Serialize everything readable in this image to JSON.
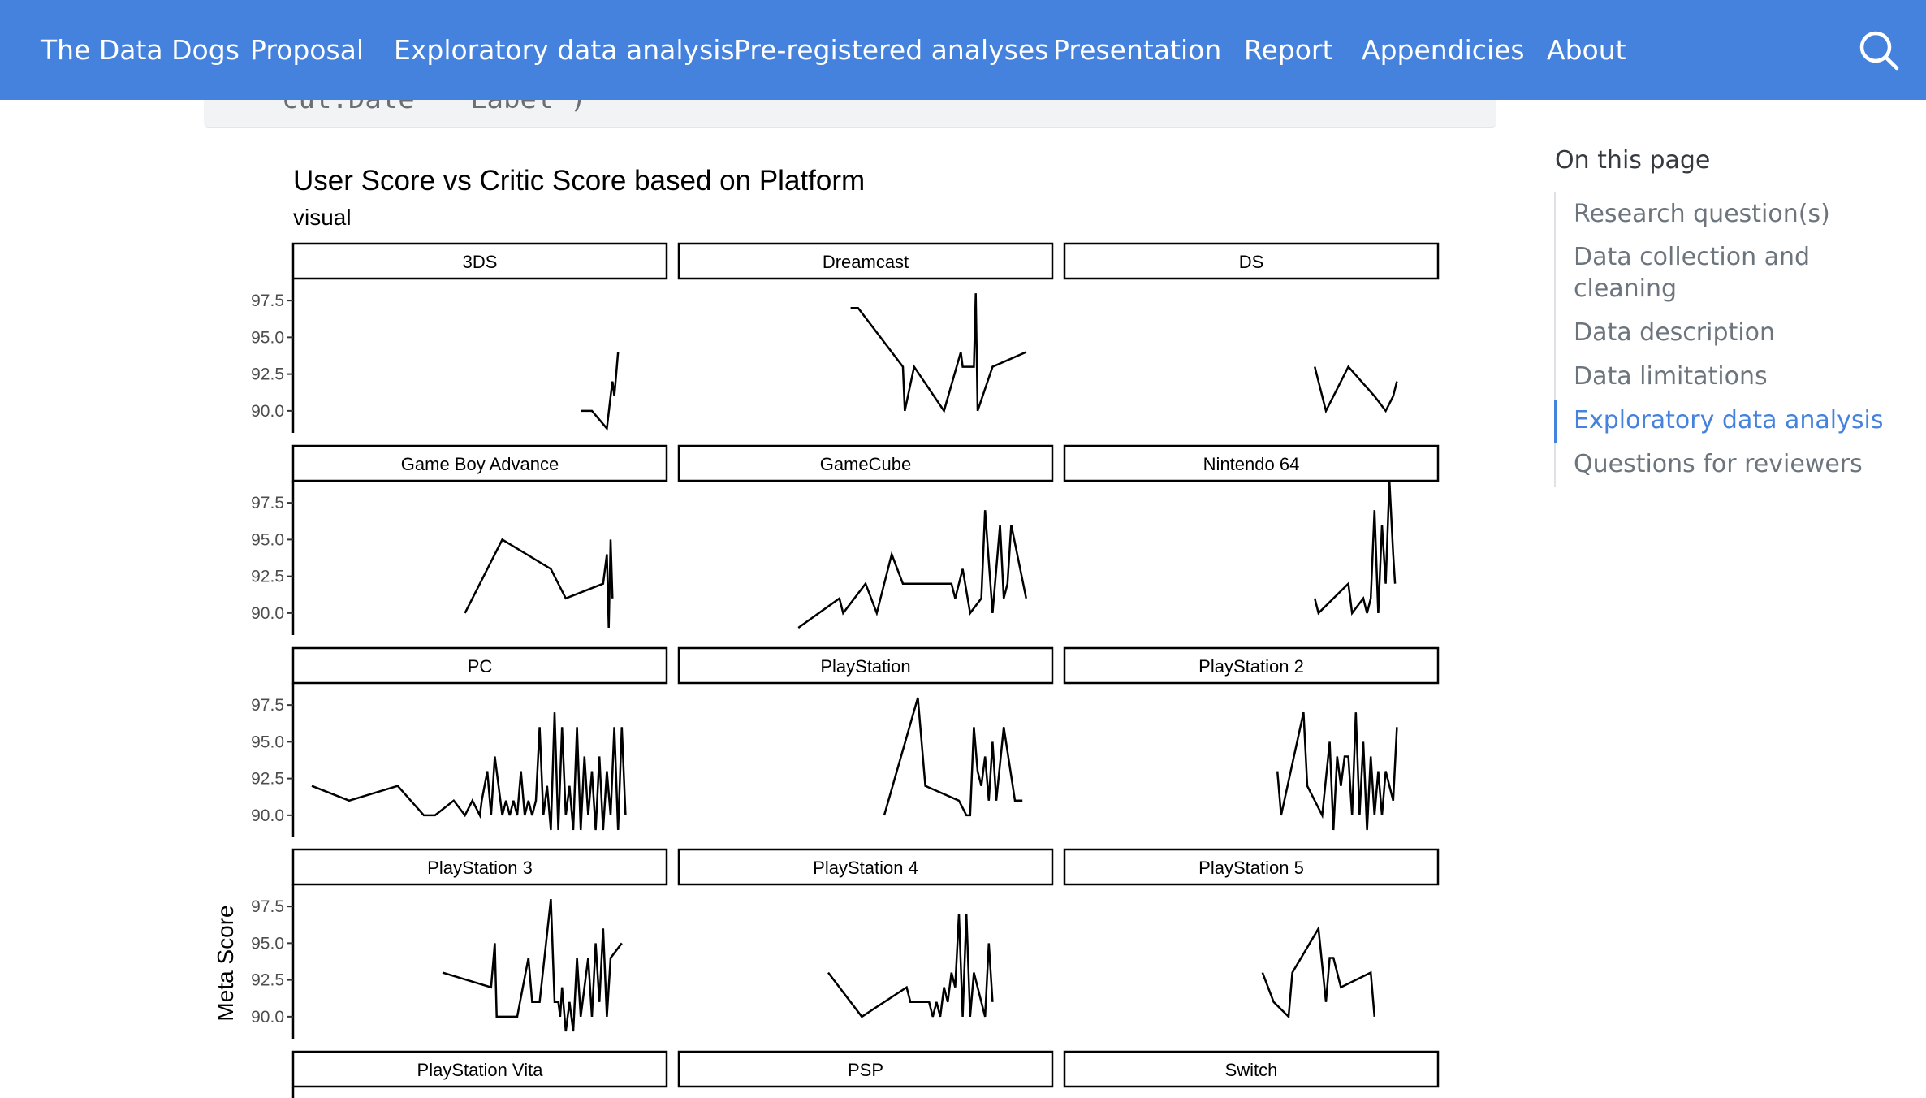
{
  "navbar": {
    "brand": "The Data Dogs",
    "items": [
      "Proposal",
      "Exploratory data analysis",
      "Pre-registered analyses",
      "Presentation",
      "Report",
      "Appendicies",
      "About"
    ],
    "search_icon": "search-icon"
  },
  "code_remnant": {
    "left": "cut.Date",
    "right": "Label\")"
  },
  "toc": {
    "title": "On this page",
    "items": [
      {
        "label": "Research question(s)",
        "active": false
      },
      {
        "label": "Data collection and cleaning",
        "active": false
      },
      {
        "label": "Data description",
        "active": false
      },
      {
        "label": "Data limitations",
        "active": false
      },
      {
        "label": "Exploratory data analysis",
        "active": true
      },
      {
        "label": "Questions for reviewers",
        "active": false
      }
    ],
    "accent": "#4582dd"
  },
  "chart_data": {
    "type": "line",
    "title": "User Score vs Critic Score based on Platform",
    "subtitle": "visual",
    "ylabel": "Meta Score",
    "y_ticks": [
      "97.5",
      "95.0",
      "92.5",
      "90.0"
    ],
    "ylim": [
      88.5,
      99
    ],
    "xlim": [
      0,
      1
    ],
    "facets": [
      {
        "name": "3DS",
        "x": [
          0.77,
          0.8,
          0.84,
          0.85,
          0.855,
          0.86,
          0.87
        ],
        "y": [
          90.0,
          90.0,
          88.8,
          91.0,
          92.0,
          91.0,
          94.0
        ]
      },
      {
        "name": "Dreamcast",
        "x": [
          0.46,
          0.48,
          0.6,
          0.605,
          0.63,
          0.71,
          0.755,
          0.76,
          0.79,
          0.795,
          0.8,
          0.84,
          0.93
        ],
        "y": [
          97.0,
          97.0,
          93.0,
          90.0,
          93.0,
          90.0,
          94.0,
          93.0,
          93.0,
          98.0,
          90.0,
          93.0,
          94.0
        ]
      },
      {
        "name": "DS",
        "x": [
          0.67,
          0.7,
          0.76,
          0.83,
          0.86,
          0.88,
          0.89
        ],
        "y": [
          93.0,
          90.0,
          93.0,
          91.0,
          90.0,
          91.0,
          92.0
        ]
      },
      {
        "name": "Game Boy Advance",
        "x": [
          0.46,
          0.56,
          0.69,
          0.73,
          0.83,
          0.84,
          0.845,
          0.85,
          0.855
        ],
        "y": [
          90.0,
          95.0,
          93.0,
          91.0,
          92.0,
          94.0,
          89.0,
          95.0,
          91.0
        ]
      },
      {
        "name": "GameCube",
        "x": [
          0.32,
          0.43,
          0.44,
          0.5,
          0.53,
          0.57,
          0.6,
          0.73,
          0.74,
          0.76,
          0.78,
          0.81,
          0.82,
          0.84,
          0.86,
          0.87,
          0.88,
          0.89,
          0.93
        ],
        "y": [
          89.0,
          91.0,
          90.0,
          92.0,
          90.0,
          94.0,
          92.0,
          92.0,
          91.0,
          93.0,
          90.0,
          91.0,
          97.0,
          90.0,
          96.0,
          91.0,
          92.0,
          96.0,
          91.0
        ]
      },
      {
        "name": "Nintendo 64",
        "x": [
          0.67,
          0.68,
          0.76,
          0.77,
          0.8,
          0.81,
          0.82,
          0.83,
          0.84,
          0.85,
          0.86,
          0.87,
          0.88,
          0.885
        ],
        "y": [
          91.0,
          90.0,
          92.0,
          90.0,
          91.0,
          90.0,
          91.0,
          97.0,
          90.0,
          96.0,
          92.0,
          99.0,
          94.0,
          92.0
        ]
      },
      {
        "name": "PC",
        "x": [
          0.05,
          0.15,
          0.28,
          0.35,
          0.38,
          0.43,
          0.46,
          0.48,
          0.5,
          0.505,
          0.52,
          0.53,
          0.54,
          0.55,
          0.56,
          0.57,
          0.58,
          0.59,
          0.6,
          0.61,
          0.62,
          0.63,
          0.64,
          0.65,
          0.66,
          0.67,
          0.68,
          0.69,
          0.7,
          0.71,
          0.72,
          0.73,
          0.74,
          0.75,
          0.76,
          0.77,
          0.78,
          0.79,
          0.8,
          0.81,
          0.82,
          0.83,
          0.84,
          0.85,
          0.86,
          0.87,
          0.88,
          0.89
        ],
        "y": [
          92.0,
          91.0,
          92.0,
          90.0,
          90.0,
          91.0,
          90.0,
          91.0,
          90.0,
          91.0,
          93.0,
          90.0,
          94.0,
          92.0,
          90.0,
          91.0,
          90.0,
          91.0,
          90.0,
          93.0,
          90.0,
          91.0,
          90.0,
          91.0,
          96.0,
          90.0,
          92.0,
          89.0,
          97.0,
          89.0,
          96.0,
          90.0,
          92.0,
          89.0,
          96.0,
          89.0,
          94.0,
          90.0,
          93.0,
          89.0,
          94.0,
          89.0,
          93.0,
          90.0,
          96.0,
          89.0,
          96.0,
          90.0
        ]
      },
      {
        "name": "PlayStation",
        "x": [
          0.55,
          0.64,
          0.66,
          0.75,
          0.77,
          0.78,
          0.79,
          0.8,
          0.81,
          0.82,
          0.83,
          0.84,
          0.85,
          0.87,
          0.9,
          0.92
        ],
        "y": [
          90.0,
          98.0,
          92.0,
          91.0,
          90.0,
          90.0,
          96.0,
          93.0,
          92.0,
          94.0,
          91.0,
          95.0,
          91.0,
          96.0,
          91.0,
          91.0
        ]
      },
      {
        "name": "PlayStation 2",
        "x": [
          0.57,
          0.58,
          0.64,
          0.65,
          0.69,
          0.71,
          0.72,
          0.73,
          0.74,
          0.75,
          0.76,
          0.77,
          0.78,
          0.79,
          0.8,
          0.81,
          0.82,
          0.83,
          0.84,
          0.85,
          0.86,
          0.88,
          0.89
        ],
        "y": [
          93.0,
          90.0,
          97.0,
          92.0,
          90.0,
          95.0,
          89.0,
          94.0,
          92.0,
          94.0,
          94.0,
          90.0,
          97.0,
          90.0,
          95.0,
          89.0,
          94.0,
          90.0,
          93.0,
          90.0,
          93.0,
          91.0,
          96.0
        ]
      },
      {
        "name": "PlayStation 3",
        "x": [
          0.4,
          0.53,
          0.54,
          0.545,
          0.6,
          0.63,
          0.64,
          0.66,
          0.69,
          0.7,
          0.71,
          0.715,
          0.72,
          0.73,
          0.74,
          0.75,
          0.76,
          0.77,
          0.78,
          0.79,
          0.8,
          0.81,
          0.82,
          0.83,
          0.84,
          0.85,
          0.88
        ],
        "y": [
          93.0,
          92.0,
          95.0,
          90.0,
          90.0,
          94.0,
          91.0,
          91.0,
          98.0,
          91.0,
          91.0,
          90.0,
          92.0,
          89.0,
          91.0,
          89.0,
          94.0,
          90.0,
          92.0,
          94.0,
          90.0,
          95.0,
          91.0,
          96.0,
          90.0,
          94.0,
          95.0
        ]
      },
      {
        "name": "PlayStation 4",
        "x": [
          0.4,
          0.49,
          0.61,
          0.62,
          0.67,
          0.68,
          0.69,
          0.7,
          0.71,
          0.72,
          0.73,
          0.74,
          0.75,
          0.76,
          0.77,
          0.78,
          0.79,
          0.8,
          0.82,
          0.83,
          0.84
        ],
        "y": [
          93.0,
          90.0,
          92.0,
          91.0,
          91.0,
          90.0,
          91.0,
          90.0,
          92.0,
          91.0,
          93.0,
          92.0,
          97.0,
          90.0,
          97.0,
          90.0,
          93.0,
          92.0,
          90.0,
          95.0,
          91.0
        ]
      },
      {
        "name": "PlayStation 5",
        "x": [
          0.53,
          0.56,
          0.6,
          0.61,
          0.68,
          0.7,
          0.71,
          0.72,
          0.74,
          0.82,
          0.83
        ],
        "y": [
          93.0,
          91.0,
          90.0,
          93.0,
          96.0,
          91.0,
          94.0,
          94.0,
          92.0,
          93.0,
          90.0
        ]
      }
    ],
    "cut_off_facets": [
      "PlayStation Vita",
      "PSP",
      "Switch"
    ],
    "line_color": "#000000",
    "strip_border": "#000000"
  }
}
